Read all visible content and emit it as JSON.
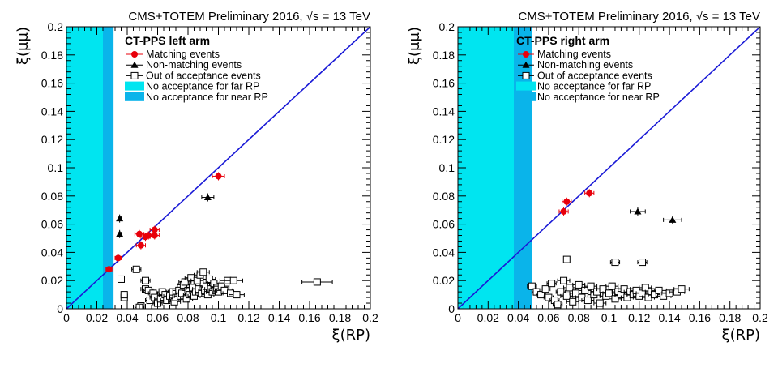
{
  "chart_data": [
    {
      "type": "scatter",
      "header": "CMS+TOTEM Preliminary 2016, √s = 13 TeV",
      "xlabel": "ξ(RP)",
      "ylabel": "ξ(μμ)",
      "xlim": [
        0,
        0.2
      ],
      "ylim": [
        0,
        0.2
      ],
      "xticks": [
        "0",
        "0.02",
        "0.04",
        "0.06",
        "0.08",
        "0.1",
        "0.12",
        "0.14",
        "0.16",
        "0.18",
        "0.2"
      ],
      "yticks": [
        "0",
        "0.02",
        "0.04",
        "0.06",
        "0.08",
        "0.1",
        "0.12",
        "0.14",
        "0.16",
        "0.18",
        "0.2"
      ],
      "legend_title": "CT-PPS left arm",
      "legend_position": "top-left",
      "diagonal_line": {
        "from": [
          0,
          0
        ],
        "to": [
          0.2,
          0.2
        ],
        "color": "#1a1ad6"
      },
      "regions": [
        {
          "name": "No acceptance for far RP",
          "x": [
            0,
            0.024
          ],
          "color": "#00e5f0"
        },
        {
          "name": "No acceptance for near RP",
          "x": [
            0.024,
            0.031
          ],
          "color": "#0ab4ea"
        }
      ],
      "series": [
        {
          "name": "Matching events",
          "marker": "circle",
          "color": "#e8000b",
          "points": [
            [
              0.028,
              0.028
            ],
            [
              0.034,
              0.036
            ],
            [
              0.048,
              0.053
            ],
            [
              0.049,
              0.045
            ],
            [
              0.052,
              0.051
            ],
            [
              0.054,
              0.052
            ],
            [
              0.058,
              0.056
            ],
            [
              0.058,
              0.052
            ],
            [
              0.1,
              0.094
            ]
          ],
          "xerr": [
            0.002,
            0.002,
            0.003,
            0.003,
            0.003,
            0.003,
            0.003,
            0.003,
            0.004
          ]
        },
        {
          "name": "Non-matching events",
          "marker": "triangle",
          "color": "#000000",
          "points": [
            [
              0.035,
              0.064
            ],
            [
              0.035,
              0.053
            ],
            [
              0.093,
              0.079
            ]
          ],
          "xerr": [
            0.001,
            0.001,
            0.004
          ]
        },
        {
          "name": "Out of acceptance events",
          "marker": "open-square",
          "color": "#000000",
          "points": [
            [
              0.036,
              0.021
            ],
            [
              0.038,
              0.008
            ],
            [
              0.038,
              0.01
            ],
            [
              0.046,
              0.028
            ],
            [
              0.049,
              0.002
            ],
            [
              0.048,
              0.001
            ],
            [
              0.052,
              0.02
            ],
            [
              0.052,
              0.014
            ],
            [
              0.054,
              0.013
            ],
            [
              0.055,
              0.006
            ],
            [
              0.057,
              0.011
            ],
            [
              0.058,
              0.008
            ],
            [
              0.06,
              0.004
            ],
            [
              0.062,
              0.007
            ],
            [
              0.063,
              0.012
            ],
            [
              0.065,
              0.01
            ],
            [
              0.066,
              0.006
            ],
            [
              0.068,
              0.009
            ],
            [
              0.07,
              0.012
            ],
            [
              0.071,
              0.005
            ],
            [
              0.072,
              0.008
            ],
            [
              0.074,
              0.013
            ],
            [
              0.075,
              0.009
            ],
            [
              0.076,
              0.011
            ],
            [
              0.077,
              0.017
            ],
            [
              0.078,
              0.019
            ],
            [
              0.079,
              0.007
            ],
            [
              0.08,
              0.013
            ],
            [
              0.081,
              0.01
            ],
            [
              0.082,
              0.022
            ],
            [
              0.083,
              0.015
            ],
            [
              0.084,
              0.009
            ],
            [
              0.085,
              0.012
            ],
            [
              0.086,
              0.02
            ],
            [
              0.087,
              0.014
            ],
            [
              0.088,
              0.024
            ],
            [
              0.089,
              0.011
            ],
            [
              0.09,
              0.026
            ],
            [
              0.091,
              0.013
            ],
            [
              0.092,
              0.016
            ],
            [
              0.093,
              0.01
            ],
            [
              0.094,
              0.021
            ],
            [
              0.095,
              0.014
            ],
            [
              0.096,
              0.012
            ],
            [
              0.097,
              0.018
            ],
            [
              0.098,
              0.013
            ],
            [
              0.099,
              0.015
            ],
            [
              0.1,
              0.012
            ],
            [
              0.102,
              0.016
            ],
            [
              0.104,
              0.013
            ],
            [
              0.106,
              0.02
            ],
            [
              0.108,
              0.011
            ],
            [
              0.112,
              0.01
            ],
            [
              0.11,
              0.02
            ],
            [
              0.165,
              0.019
            ]
          ],
          "xerr": [
            0.002,
            0.002,
            0.002,
            0.003,
            0.003,
            0.003,
            0.003,
            0.003,
            0.003,
            0.003,
            0.003,
            0.003,
            0.003,
            0.004,
            0.004,
            0.004,
            0.004,
            0.004,
            0.004,
            0.004,
            0.004,
            0.004,
            0.004,
            0.004,
            0.004,
            0.004,
            0.004,
            0.004,
            0.004,
            0.004,
            0.004,
            0.004,
            0.004,
            0.004,
            0.004,
            0.004,
            0.004,
            0.004,
            0.004,
            0.004,
            0.004,
            0.004,
            0.004,
            0.004,
            0.004,
            0.004,
            0.004,
            0.004,
            0.005,
            0.005,
            0.005,
            0.005,
            0.005,
            0.006,
            0.01
          ]
        }
      ]
    },
    {
      "type": "scatter",
      "header": "CMS+TOTEM Preliminary 2016, √s = 13 TeV",
      "xlabel": "ξ(RP)",
      "ylabel": "ξ(μμ)",
      "xlim": [
        0,
        0.2
      ],
      "ylim": [
        0,
        0.2
      ],
      "xticks": [
        "0",
        "0.02",
        "0.04",
        "0.06",
        "0.08",
        "0.1",
        "0.12",
        "0.14",
        "0.16",
        "0.18",
        "0.2"
      ],
      "yticks": [
        "0",
        "0.02",
        "0.04",
        "0.06",
        "0.08",
        "0.1",
        "0.12",
        "0.14",
        "0.16",
        "0.18",
        "0.2"
      ],
      "legend_title": "CT-PPS right arm",
      "legend_position": "top-left",
      "diagonal_line": {
        "from": [
          0,
          0
        ],
        "to": [
          0.2,
          0.2
        ],
        "color": "#1a1ad6"
      },
      "regions": [
        {
          "name": "No acceptance for far RP",
          "x": [
            0,
            0.037
          ],
          "color": "#00e5f0"
        },
        {
          "name": "No acceptance for near RP",
          "x": [
            0.037,
            0.049
          ],
          "color": "#0ab4ea"
        }
      ],
      "series": [
        {
          "name": "Matching events",
          "marker": "circle",
          "color": "#e8000b",
          "points": [
            [
              0.07,
              0.069
            ],
            [
              0.072,
              0.076
            ],
            [
              0.087,
              0.082
            ]
          ],
          "xerr": [
            0.003,
            0.003,
            0.003
          ]
        },
        {
          "name": "Non-matching events",
          "marker": "triangle",
          "color": "#000000",
          "points": [
            [
              0.119,
              0.069
            ],
            [
              0.142,
              0.063
            ]
          ],
          "xerr": [
            0.005,
            0.006
          ]
        },
        {
          "name": "Out of acceptance events",
          "marker": "open-square",
          "color": "#000000",
          "points": [
            [
              0.072,
              0.035
            ],
            [
              0.104,
              0.033
            ],
            [
              0.122,
              0.033
            ],
            [
              0.049,
              0.016
            ],
            [
              0.052,
              0.012
            ],
            [
              0.055,
              0.01
            ],
            [
              0.058,
              0.014
            ],
            [
              0.06,
              0.008
            ],
            [
              0.062,
              0.018
            ],
            [
              0.064,
              0.006
            ],
            [
              0.066,
              0.003
            ],
            [
              0.068,
              0.012
            ],
            [
              0.07,
              0.02
            ],
            [
              0.072,
              0.009
            ],
            [
              0.074,
              0.015
            ],
            [
              0.076,
              0.005
            ],
            [
              0.078,
              0.011
            ],
            [
              0.08,
              0.017
            ],
            [
              0.082,
              0.008
            ],
            [
              0.084,
              0.013
            ],
            [
              0.086,
              0.006
            ],
            [
              0.088,
              0.016
            ],
            [
              0.09,
              0.01
            ],
            [
              0.092,
              0.012
            ],
            [
              0.094,
              0.004
            ],
            [
              0.096,
              0.014
            ],
            [
              0.098,
              0.009
            ],
            [
              0.1,
              0.011
            ],
            [
              0.102,
              0.016
            ],
            [
              0.104,
              0.007
            ],
            [
              0.106,
              0.012
            ],
            [
              0.108,
              0.01
            ],
            [
              0.11,
              0.014
            ],
            [
              0.112,
              0.008
            ],
            [
              0.114,
              0.012
            ],
            [
              0.116,
              0.01
            ],
            [
              0.118,
              0.013
            ],
            [
              0.12,
              0.009
            ],
            [
              0.122,
              0.011
            ],
            [
              0.124,
              0.015
            ],
            [
              0.126,
              0.008
            ],
            [
              0.128,
              0.012
            ],
            [
              0.13,
              0.01
            ],
            [
              0.133,
              0.013
            ],
            [
              0.136,
              0.009
            ],
            [
              0.14,
              0.011
            ],
            [
              0.145,
              0.012
            ],
            [
              0.148,
              0.014
            ]
          ],
          "xerr": [
            0.002,
            0.003,
            0.003,
            0.003,
            0.003,
            0.003,
            0.003,
            0.003,
            0.003,
            0.003,
            0.003,
            0.003,
            0.004,
            0.004,
            0.004,
            0.004,
            0.004,
            0.004,
            0.004,
            0.004,
            0.004,
            0.004,
            0.004,
            0.004,
            0.004,
            0.004,
            0.004,
            0.004,
            0.004,
            0.004,
            0.004,
            0.004,
            0.004,
            0.004,
            0.004,
            0.004,
            0.004,
            0.004,
            0.004,
            0.004,
            0.004,
            0.004,
            0.004,
            0.005,
            0.005,
            0.005,
            0.005,
            0.005
          ]
        }
      ]
    }
  ]
}
